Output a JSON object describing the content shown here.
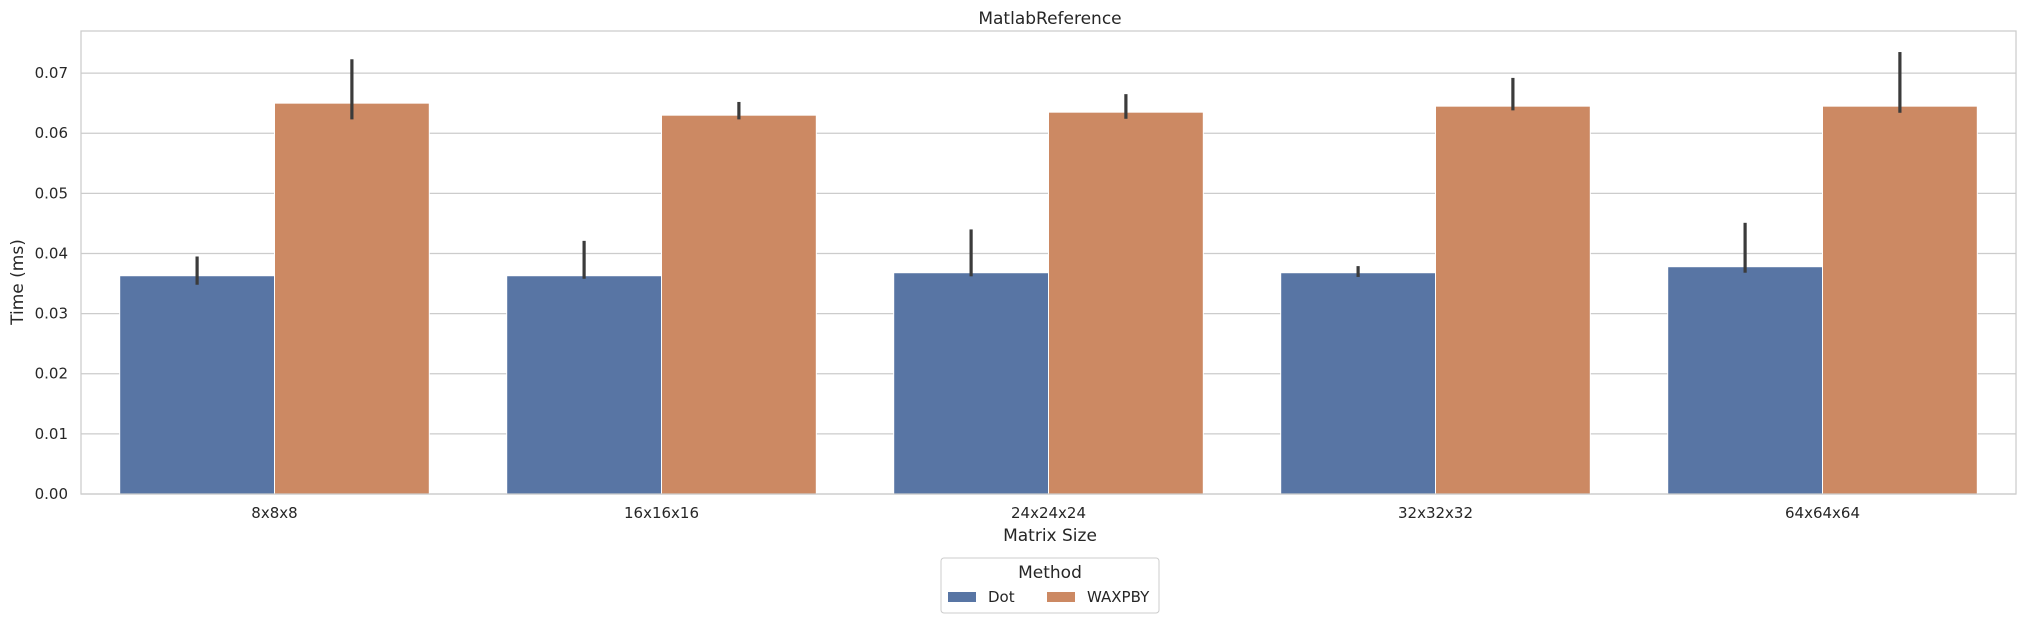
{
  "chart_data": {
    "type": "bar",
    "title": "MatlabReference",
    "xlabel": "Matrix Size",
    "ylabel": "Time (ms)",
    "categories": [
      "8x8x8",
      "16x16x16",
      "24x24x24",
      "32x32x32",
      "64x64x64"
    ],
    "ylim": [
      0,
      0.077
    ],
    "yticks": [
      0.0,
      0.01,
      0.02,
      0.03,
      0.04,
      0.05,
      0.06,
      0.07
    ],
    "ytick_labels": [
      "0.00",
      "0.01",
      "0.02",
      "0.03",
      "0.04",
      "0.05",
      "0.06",
      "0.07"
    ],
    "grid": "horizontal",
    "legend": {
      "title": "Method",
      "placement": "bottom-center"
    },
    "series": [
      {
        "name": "Dot",
        "color": "#5875a4",
        "values": [
          0.0363,
          0.0363,
          0.0368,
          0.0368,
          0.0378
        ],
        "error_low": [
          0.0348,
          0.0358,
          0.0362,
          0.0361,
          0.0368
        ],
        "error_high": [
          0.0395,
          0.0421,
          0.044,
          0.0379,
          0.0451
        ]
      },
      {
        "name": "WAXPBY",
        "color": "#cc8963",
        "values": [
          0.065,
          0.063,
          0.0635,
          0.0645,
          0.0645
        ],
        "error_low": [
          0.0623,
          0.0623,
          0.0624,
          0.0638,
          0.0634
        ],
        "error_high": [
          0.0723,
          0.0652,
          0.0665,
          0.0692,
          0.0735
        ]
      }
    ]
  }
}
